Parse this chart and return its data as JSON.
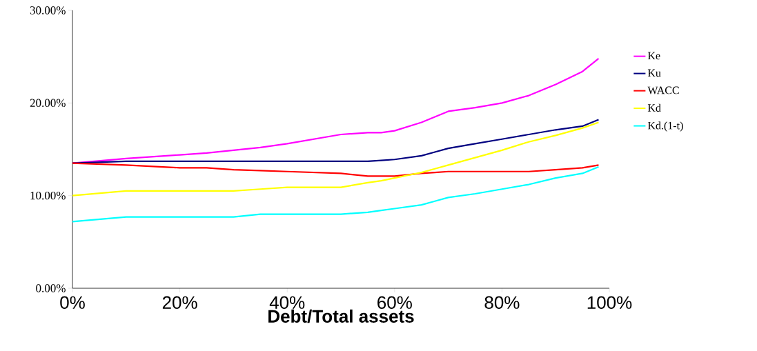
{
  "chart_data": {
    "type": "line",
    "xlabel": "Debt/Total assets",
    "x": [
      0,
      10,
      20,
      25,
      30,
      35,
      40,
      50,
      55,
      57.5,
      60,
      65,
      67.5,
      70,
      75,
      80,
      85,
      90,
      95,
      98
    ],
    "series": [
      {
        "name": "Ke",
        "color": "#ff00ff",
        "values": [
          13.5,
          14.0,
          14.4,
          14.6,
          14.9,
          15.2,
          15.6,
          16.6,
          16.8,
          16.8,
          17.0,
          17.9,
          18.5,
          19.1,
          19.5,
          20.0,
          20.8,
          22.0,
          23.4,
          24.8
        ]
      },
      {
        "name": "Ku",
        "color": "#000080",
        "values": [
          13.5,
          13.7,
          13.7,
          13.7,
          13.7,
          13.7,
          13.7,
          13.7,
          13.7,
          13.8,
          13.9,
          14.3,
          14.7,
          15.1,
          15.6,
          16.1,
          16.6,
          17.1,
          17.5,
          18.2
        ]
      },
      {
        "name": "WACC",
        "color": "#ff0000",
        "values": [
          13.5,
          13.3,
          13.0,
          13.0,
          12.8,
          12.7,
          12.6,
          12.4,
          12.1,
          12.1,
          12.1,
          12.4,
          12.5,
          12.6,
          12.6,
          12.6,
          12.6,
          12.8,
          13.0,
          13.3
        ]
      },
      {
        "name": "Kd",
        "color": "#ffff00",
        "values": [
          10.0,
          10.5,
          10.5,
          10.5,
          10.5,
          10.7,
          10.9,
          10.9,
          11.4,
          11.6,
          11.9,
          12.5,
          12.9,
          13.3,
          14.1,
          14.9,
          15.8,
          16.5,
          17.3,
          17.9
        ]
      },
      {
        "name": "Kd.(1-t)",
        "color": "#00ffff",
        "values": [
          7.2,
          7.7,
          7.7,
          7.7,
          7.7,
          8.0,
          8.0,
          8.0,
          8.2,
          8.4,
          8.6,
          9.0,
          9.4,
          9.8,
          10.2,
          10.7,
          11.2,
          11.9,
          12.4,
          13.1
        ]
      }
    ],
    "xlim": [
      0,
      100
    ],
    "ylim": [
      0,
      30
    ],
    "xticks": [
      {
        "value": 0,
        "label": "0%"
      },
      {
        "value": 20,
        "label": "20%"
      },
      {
        "value": 40,
        "label": "40%"
      },
      {
        "value": 60,
        "label": "60%"
      },
      {
        "value": 80,
        "label": "80%"
      },
      {
        "value": 100,
        "label": "100%"
      }
    ],
    "yticks": [
      {
        "value": 0,
        "label": "0.00%"
      },
      {
        "value": 10,
        "label": "10.00%"
      },
      {
        "value": 20,
        "label": "20.00%"
      },
      {
        "value": 30,
        "label": "30.00%"
      }
    ],
    "legend": "right",
    "grid": false,
    "marker": "none",
    "line_style": "solid"
  }
}
